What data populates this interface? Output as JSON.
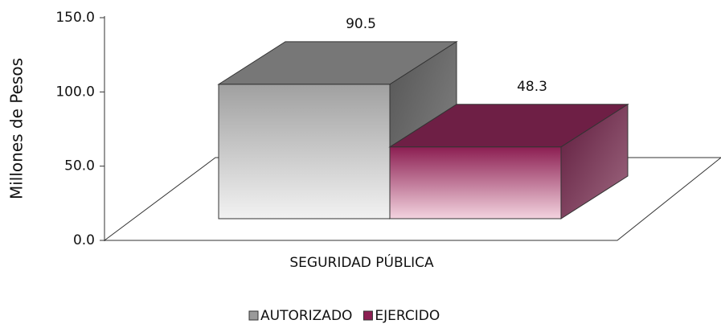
{
  "chart_data": {
    "type": "bar3d",
    "y_label": "Millones de Pesos",
    "categories": [
      "SEGURIDAD PÚBLICA"
    ],
    "series": [
      {
        "name": "AUTORIZADO",
        "color": "#9a9a9a",
        "values": [
          90.5
        ]
      },
      {
        "name": "EJERCIDO",
        "color": "#8c1f52",
        "values": [
          48.3
        ]
      }
    ],
    "ylim": [
      0,
      150
    ],
    "yticks": [
      {
        "value": 0,
        "label": "0.0"
      },
      {
        "value": 50,
        "label": "50.0"
      },
      {
        "value": 100,
        "label": "100.0"
      },
      {
        "value": 150,
        "label": "150.0"
      }
    ],
    "legend": "bottom"
  }
}
